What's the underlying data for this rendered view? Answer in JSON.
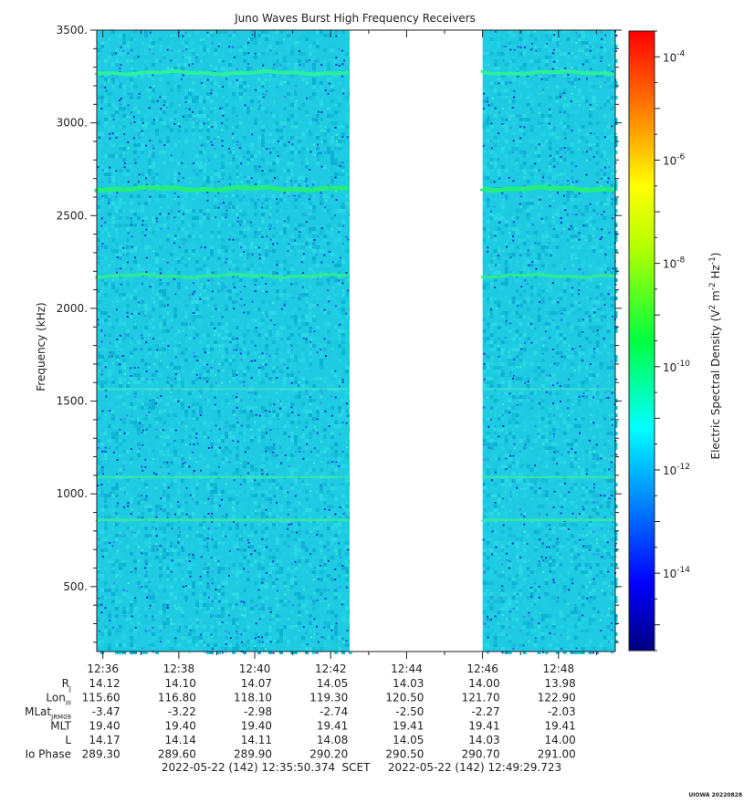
{
  "chart_data": {
    "type": "heatmap",
    "title": "Juno Waves Burst High Frequency Receivers",
    "ylabel": "Frequency (kHz)",
    "ylim": [
      150,
      3500
    ],
    "y_ticks": [
      500,
      1000,
      1500,
      2000,
      2500,
      3000,
      3500
    ],
    "y_tick_labels": [
      "500.",
      "1000.",
      "1500.",
      "2000.",
      "2500.",
      "3000.",
      "3500."
    ],
    "x_range": [
      "12:35:50.374",
      "12:49:29.723"
    ],
    "x_ticks": [
      "12:36",
      "12:38",
      "12:40",
      "12:42",
      "12:44",
      "12:46",
      "12:48"
    ],
    "data_gap": [
      "12:42:30",
      "12:46:00"
    ],
    "emission_bands_khz": [
      3270,
      2645,
      2175,
      1565,
      1090,
      860
    ],
    "colorbar": {
      "label_parts": [
        "Electric Spectral Density (V",
        "2",
        " m",
        "-2",
        " Hz",
        "-1",
        ")"
      ],
      "scale": "log",
      "range_exp": [
        -15.5,
        -3.5
      ],
      "tick_exponents": [
        -14,
        -12,
        -10,
        -8,
        -6,
        -4
      ],
      "tick_base": "10"
    },
    "ephemeris": {
      "rows": [
        {
          "label": "R",
          "sub": "J",
          "values": [
            "14.12",
            "14.10",
            "14.07",
            "14.05",
            "14.03",
            "14.00",
            "13.98"
          ]
        },
        {
          "label": "Lon",
          "sub": "III",
          "values": [
            "115.60",
            "116.80",
            "118.10",
            "119.30",
            "120.50",
            "121.70",
            "122.90"
          ]
        },
        {
          "label": "MLat",
          "sub": "JRM09",
          "values": [
            "-3.47",
            "-3.22",
            "-2.98",
            "-2.74",
            "-2.50",
            "-2.27",
            "-2.03"
          ]
        },
        {
          "label": "MLT",
          "sub": "",
          "values": [
            "19.40",
            "19.40",
            "19.40",
            "19.41",
            "19.41",
            "19.41",
            "19.41"
          ]
        },
        {
          "label": "L",
          "sub": "",
          "values": [
            "14.17",
            "14.14",
            "14.11",
            "14.08",
            "14.05",
            "14.03",
            "14.00"
          ]
        },
        {
          "label": "Io Phase",
          "sub": "",
          "values": [
            "289.30",
            "289.60",
            "289.90",
            "290.20",
            "290.50",
            "290.70",
            "291.00"
          ]
        }
      ]
    },
    "footer": {
      "start": "2022-05-22 (142) 12:35:50.374",
      "scet": "SCET",
      "end": "2022-05-22 (142) 12:49:29.723"
    },
    "credit": "UIOWA 20220828"
  }
}
